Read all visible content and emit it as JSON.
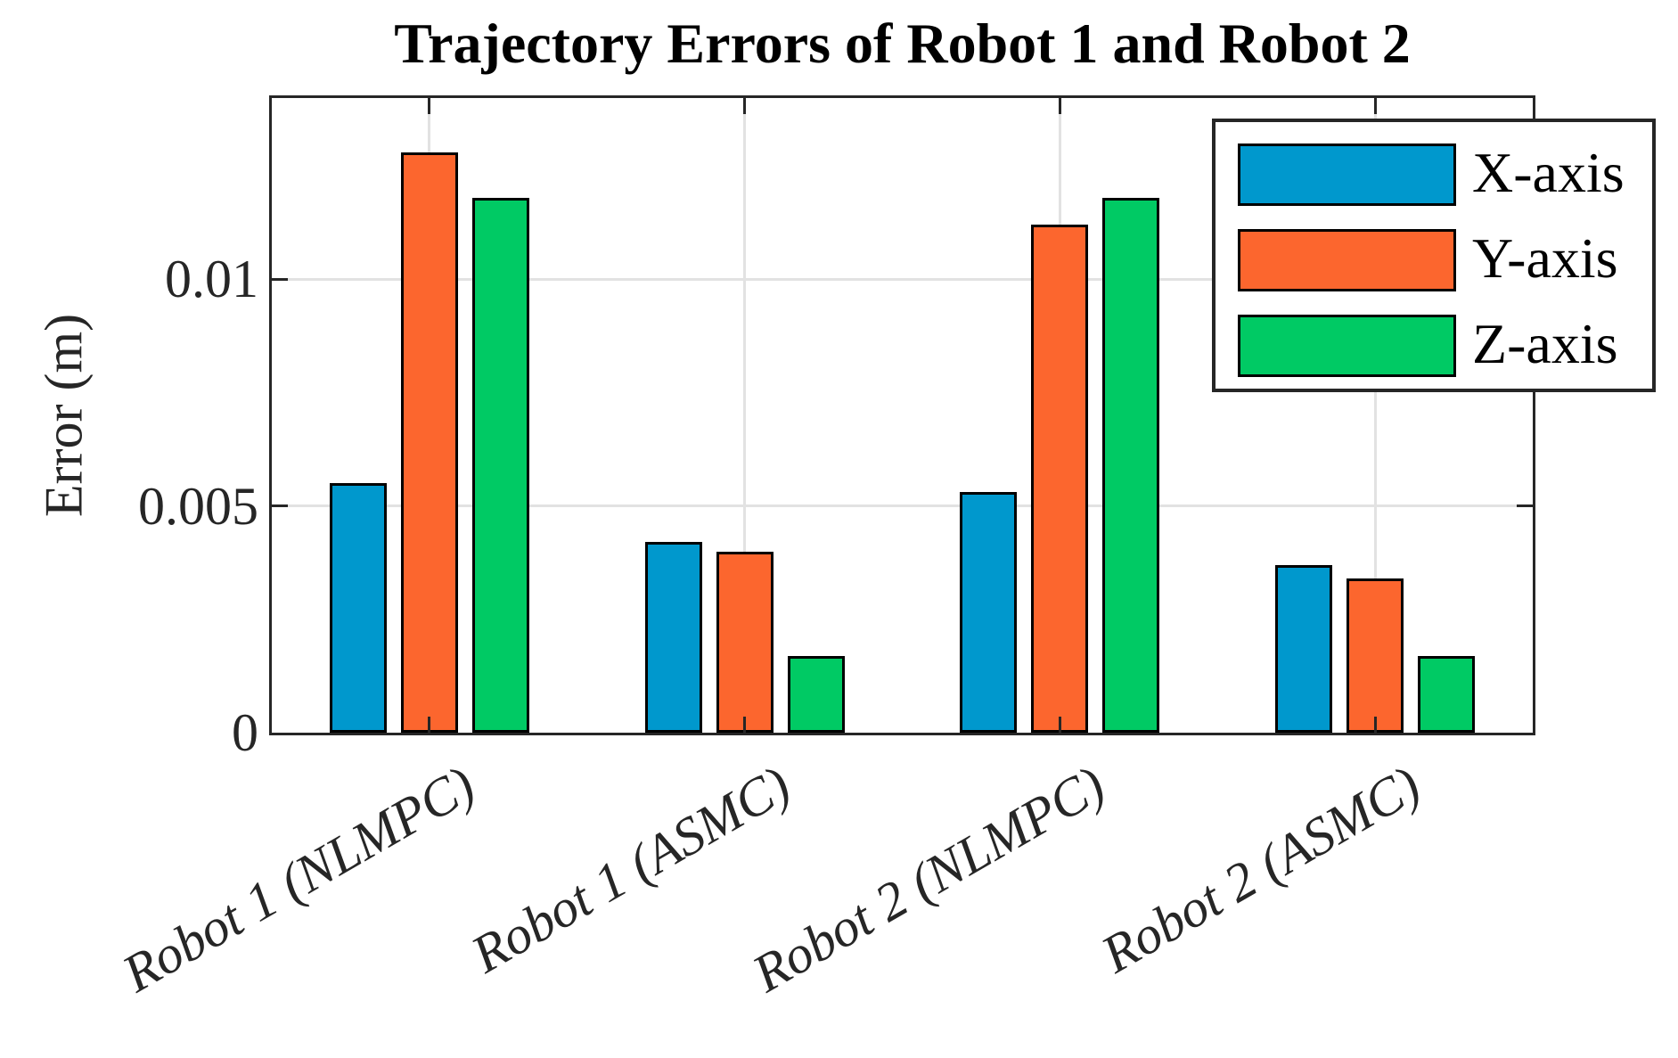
{
  "chart_data": {
    "type": "bar",
    "title": "Trajectory Errors of Robot 1 and Robot 2",
    "xlabel": "",
    "ylabel": "Error (m)",
    "categories": [
      "Robot 1 (NLMPC)",
      "Robot 1 (ASMC)",
      "Robot 2 (NLMPC)",
      "Robot 2 (ASMC)"
    ],
    "series": [
      {
        "name": "X-axis",
        "color": "#0098cd",
        "values": [
          0.0055,
          0.0042,
          0.0053,
          0.0037
        ]
      },
      {
        "name": "Y-axis",
        "color": "#fc662e",
        "values": [
          0.0128,
          0.004,
          0.0112,
          0.0034
        ]
      },
      {
        "name": "Z-axis",
        "color": "#00ca64",
        "values": [
          0.0118,
          0.0017,
          0.0118,
          0.0017
        ]
      }
    ],
    "yticks": [
      0,
      0.005,
      0.01
    ],
    "ytick_labels": [
      "0",
      "0.005",
      "0.01"
    ],
    "ylim": [
      0,
      0.014
    ],
    "grid": true,
    "legend_position": "upper-right",
    "axis_color": "#262626",
    "grid_color": "#e2e2e2",
    "bar_edge_color": "#000000",
    "background_color": "#ffffff"
  }
}
